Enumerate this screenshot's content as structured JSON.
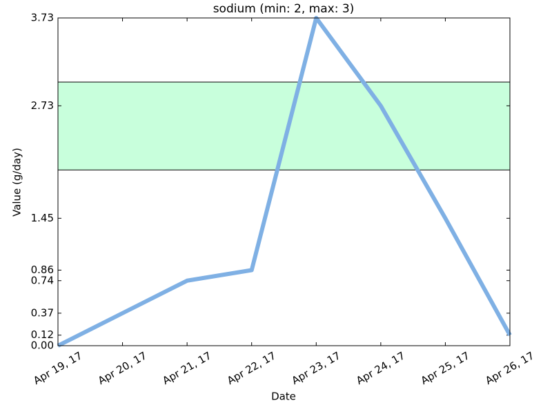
{
  "chart_data": {
    "type": "line",
    "title": "sodium (min: 2, max: 3)",
    "xlabel": "Date",
    "ylabel": "Value (g/day)",
    "categories": [
      "Apr 19, 17",
      "Apr 20, 17",
      "Apr 21, 17",
      "Apr 22, 17",
      "Apr 23, 17",
      "Apr 24, 17",
      "Apr 25, 17",
      "Apr 26, 17"
    ],
    "series": [
      {
        "name": "sodium",
        "color": "#7fb0e4",
        "values": [
          0,
          0.37,
          0.74,
          0.86,
          3.73,
          2.73,
          1.45,
          0.12
        ]
      }
    ],
    "range_min": 2,
    "range_max": 3,
    "range_color": "#c8ffdc",
    "ylim": [
      0,
      3.73
    ],
    "yticks": [
      {
        "value": 0,
        "label": "0.00"
      },
      0.12,
      0.37,
      0.74,
      0.86,
      1.45,
      2.73,
      3.73
    ]
  }
}
